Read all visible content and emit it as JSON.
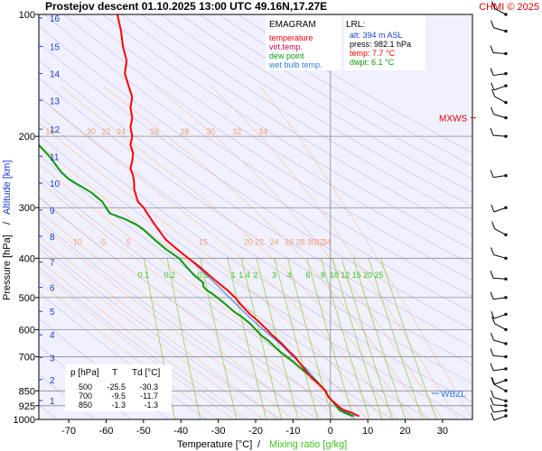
{
  "header": {
    "title": "Prostejov   descent   01.10.2025 13:00 UTC  49.16N,17.27E",
    "copyright": "CHMI © 2025"
  },
  "chart_data": {
    "type": "line",
    "diagram_label": "EMAGRAM",
    "legend": [
      {
        "label": "temperature",
        "color": "#ff0000"
      },
      {
        "label": "virt.temp.",
        "color": "#c8004a"
      },
      {
        "label": "dew point",
        "color": "#0a9a0a"
      },
      {
        "label": "wet bulb temp.",
        "color": "#2f7de0"
      }
    ],
    "lrl": {
      "title": "LRL:",
      "alt": "alt: 394 m ASL",
      "press": "press: 982.1 hPa",
      "temp": "temp: 7.7 °C",
      "dwpt": "dwpt: 6.1 °C"
    },
    "xlabel": "Temperature [°C]",
    "xlabel_sep": "/",
    "xlabel2": "Mixing ratio [g/kg]",
    "ylabel": "Pressure [hPa]",
    "ylabel_sep": "/",
    "ylabel2": "Altitude [km]",
    "xlim": [
      -78,
      38
    ],
    "ylim": [
      1000,
      100
    ],
    "y_scale": "log",
    "x_ticks": [
      "-70",
      "-60",
      "-50",
      "-40",
      "-30",
      "-20",
      "-10",
      "0",
      "10",
      "20",
      "30"
    ],
    "x_tick_values": [
      -70,
      -60,
      -50,
      -40,
      -30,
      -20,
      -10,
      0,
      10,
      20,
      30
    ],
    "p_ticks": [
      "100",
      "200",
      "300",
      "400",
      "500",
      "600",
      "700",
      "850",
      "925",
      "1000"
    ],
    "p_tick_values": [
      100,
      200,
      300,
      400,
      500,
      600,
      700,
      850,
      925,
      1000
    ],
    "alt_ticks": [
      "1",
      "2",
      "3",
      "4",
      "5",
      "6",
      "7",
      "8",
      "9",
      "10",
      "11",
      "12",
      "13",
      "14",
      "15",
      "16"
    ],
    "alt_tick_pressures": [
      898,
      797,
      703,
      618,
      541,
      472,
      409,
      353,
      304,
      261,
      224,
      192,
      163,
      140,
      120,
      102
    ],
    "theta_labels_upper": {
      "values": [
        "15",
        "20",
        "22",
        "24",
        "26",
        "28",
        "30",
        "32",
        "34"
      ],
      "temps": [
        -75,
        -64,
        -60,
        -56,
        -47,
        -39,
        -32,
        -25,
        -18
      ],
      "pressure": 200
    },
    "theta_labels_lower": {
      "values": [
        "-10",
        "-5",
        "5",
        "15",
        "20",
        "22",
        "24",
        "26",
        "28",
        "30",
        "32",
        "34"
      ],
      "temps": [
        -68,
        -61,
        -54,
        -34,
        -22,
        -19,
        -15,
        -11,
        -8,
        -5,
        -3,
        -1
      ],
      "pressure": 375
    },
    "mixing_ratio_labels": {
      "values": [
        "0.1",
        "0.2",
        "0.5",
        "1",
        "1.4",
        "2",
        "3",
        "4",
        "6",
        "8",
        "10",
        "12",
        "15",
        "20",
        "25"
      ],
      "temps": [
        -50,
        -43,
        -34,
        -26,
        -23,
        -20,
        -15,
        -11,
        -6,
        -2,
        1,
        4,
        7,
        10,
        13
      ],
      "pressure": 420
    },
    "mixing_ratio_g_per_kg": [
      0.1,
      0.2,
      0.5,
      1,
      1.4,
      2,
      3,
      4,
      6,
      8,
      10,
      12,
      15,
      20,
      25
    ],
    "table": {
      "headers": [
        "p [hPa]",
        "T",
        "Td [°C]"
      ],
      "rows": [
        [
          "500",
          "-25.5",
          "-30.3"
        ],
        [
          "700",
          "-9.5",
          "-11.7"
        ],
        [
          "850",
          "-1.3",
          "-1.3"
        ]
      ]
    },
    "markers": {
      "mxws": "MXWS",
      "mxws_pressure": 180,
      "wbzl": "WBZL",
      "wbzl_pressure": 862
    },
    "series": [
      {
        "name": "temperature",
        "color": "#ff0000",
        "p": [
          982,
          965,
          950,
          935,
          925,
          900,
          880,
          862,
          850,
          820,
          790,
          760,
          740,
          720,
          700,
          680,
          650,
          620,
          600,
          570,
          550,
          520,
          500,
          480,
          460,
          440,
          420,
          400,
          390,
          380,
          370,
          360,
          350,
          340,
          330,
          320,
          310,
          300,
          290,
          280,
          270,
          260,
          250,
          240,
          230,
          220,
          210,
          200,
          190,
          180,
          170,
          160,
          150,
          140,
          130,
          120,
          110,
          105,
          100
        ],
        "t": [
          7.7,
          6,
          3.8,
          2.5,
          2,
          0.5,
          -0.5,
          -1,
          -1.3,
          -3,
          -5,
          -6.5,
          -7.5,
          -8.5,
          -9.5,
          -11,
          -13,
          -15.5,
          -17,
          -19.5,
          -21.5,
          -24,
          -25.5,
          -27.5,
          -30,
          -32.5,
          -35,
          -38,
          -39.5,
          -41,
          -42.5,
          -44,
          -45,
          -46,
          -47,
          -48,
          -49,
          -50,
          -51.5,
          -52,
          -52.5,
          -52.5,
          -52.8,
          -53.5,
          -53,
          -52.8,
          -53.5,
          -53,
          -53.5,
          -53,
          -53.5,
          -53,
          -54,
          -55,
          -54.5,
          -55.5,
          -56,
          -56.5,
          -57
        ]
      },
      {
        "name": "dew point",
        "color": "#0a9a0a",
        "p": [
          982,
          965,
          950,
          925,
          900,
          880,
          862,
          850,
          800,
          780,
          760,
          740,
          720,
          700,
          680,
          660,
          640,
          620,
          600,
          580,
          560,
          540,
          520,
          500,
          490,
          480,
          470,
          460,
          440,
          420,
          400,
          380,
          360,
          340,
          330,
          320,
          310,
          300,
          295,
          290,
          285,
          275,
          265,
          255,
          245,
          235,
          225,
          215,
          210
        ],
        "t": [
          6.1,
          4,
          2.5,
          1.5,
          0.5,
          -0.5,
          -1,
          -1.3,
          -4,
          -5.5,
          -7,
          -8.5,
          -10,
          -11.7,
          -13.5,
          -15,
          -16.5,
          -18.5,
          -20,
          -21.5,
          -23.5,
          -26,
          -28,
          -30.3,
          -31.5,
          -33,
          -34,
          -34,
          -36.5,
          -38.5,
          -40.5,
          -44,
          -47,
          -50,
          -52,
          -55,
          -59,
          -60,
          -60.5,
          -61,
          -62,
          -64,
          -67,
          -70,
          -72,
          -73.5,
          -75,
          -77,
          -78
        ]
      },
      {
        "name": "wet bulb temp.",
        "color": "#2f7de0",
        "p": [
          982,
          950,
          925,
          900,
          862,
          850,
          800,
          750,
          700,
          650,
          600,
          550,
          500,
          450,
          400
        ],
        "t": [
          6.7,
          3,
          1.7,
          0.5,
          -1,
          -1.3,
          -3.8,
          -6.5,
          -10,
          -13.5,
          -18,
          -22.5,
          -27,
          -32,
          -38
        ]
      }
    ],
    "wind_barbs_pressures": [
      980,
      950,
      925,
      900,
      850,
      800,
      750,
      700,
      650,
      600,
      550,
      500,
      450,
      400,
      350,
      300,
      250,
      200,
      180,
      165,
      150,
      140,
      125,
      110,
      100
    ]
  }
}
